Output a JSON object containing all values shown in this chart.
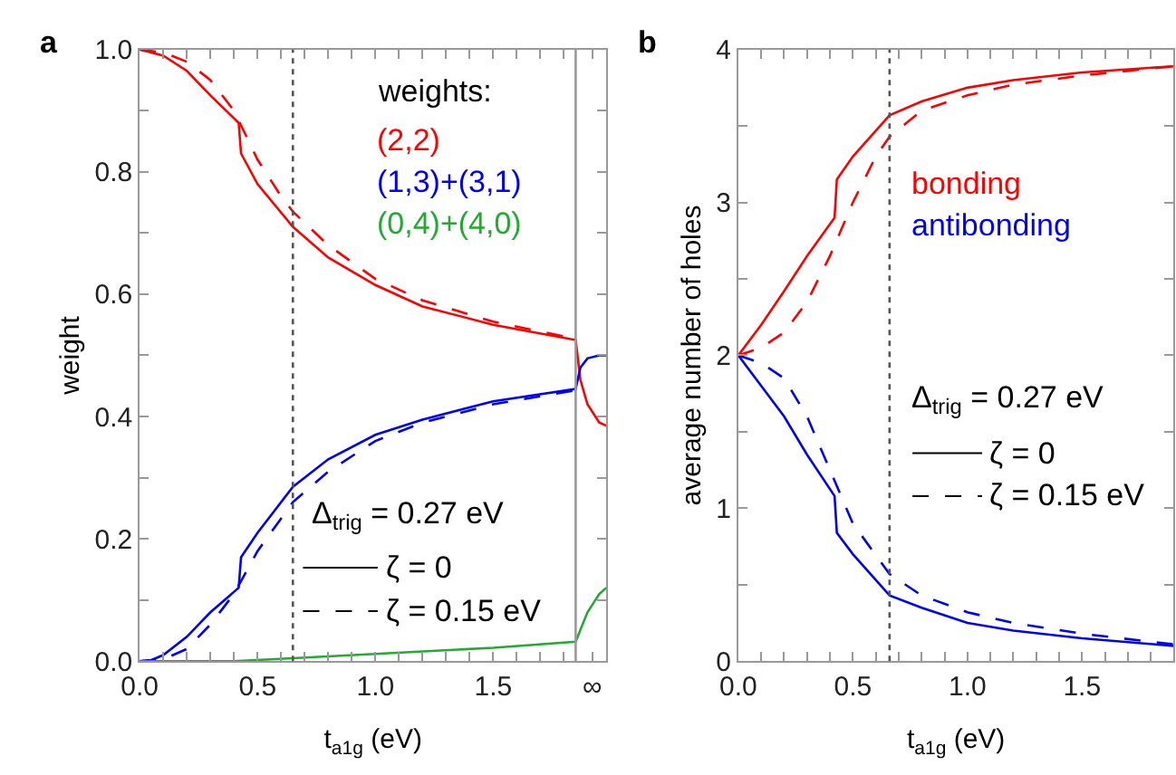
{
  "chart_data": [
    {
      "type": "line",
      "title": "a",
      "xlabel": "t$_{a1g}$ (eV)",
      "ylabel": "weight",
      "xlim": [
        0,
        1.98
      ],
      "ylim": [
        0,
        1.0
      ],
      "xticks": [
        {
          "value": 0,
          "label": "0.0"
        },
        {
          "value": 0.1,
          "label": null
        },
        {
          "value": 0.2,
          "label": null
        },
        {
          "value": 0.3,
          "label": null
        },
        {
          "value": 0.4,
          "label": null
        },
        {
          "value": 0.5,
          "label": "0.5"
        },
        {
          "value": 0.6,
          "label": null
        },
        {
          "value": 0.7,
          "label": null
        },
        {
          "value": 0.8,
          "label": null
        },
        {
          "value": 0.9,
          "label": null
        },
        {
          "value": 1.0,
          "label": "1.0"
        },
        {
          "value": 1.1,
          "label": null
        },
        {
          "value": 1.2,
          "label": null
        },
        {
          "value": 1.3,
          "label": null
        },
        {
          "value": 1.4,
          "label": null
        },
        {
          "value": 1.5,
          "label": "1.5"
        },
        {
          "value": 1.6,
          "label": null
        },
        {
          "value": 1.7,
          "label": null
        },
        {
          "value": 1.8,
          "label": null
        },
        {
          "value": 1.92,
          "label": "∞"
        }
      ],
      "yticks": [
        {
          "value": 0,
          "label": "0.0"
        },
        {
          "value": 0.1,
          "label": null
        },
        0.2,
        {
          "value": 0.3,
          "label": null
        },
        0.4,
        {
          "value": 0.5,
          "label": null
        },
        0.6,
        {
          "value": 0.7,
          "label": null
        },
        0.8,
        {
          "value": 0.9,
          "label": null
        },
        {
          "value": 1.0,
          "label": "1.0"
        }
      ],
      "legend": "top right",
      "series": [
        {
          "name": "(2,2)",
          "color": "#ff0000",
          "line_style": "solid",
          "x": [
            0,
            0.1,
            0.2,
            0.3,
            0.42,
            0.43,
            0.5,
            0.65,
            0.8,
            1.0,
            1.2,
            1.5,
            1.85,
            1.87,
            1.9,
            1.95,
            1.98
          ],
          "values": [
            1.0,
            0.99,
            0.965,
            0.925,
            0.88,
            0.83,
            0.78,
            0.71,
            0.66,
            0.615,
            0.58,
            0.55,
            0.525,
            0.46,
            0.42,
            0.39,
            0.385
          ]
        },
        {
          "color": "#ff0000",
          "line_style": "dashed",
          "x": [
            0,
            0.1,
            0.2,
            0.3,
            0.4,
            0.5,
            0.6,
            0.65,
            0.8,
            1.0,
            1.2,
            1.5,
            1.85
          ],
          "values": [
            1.0,
            0.995,
            0.98,
            0.95,
            0.9,
            0.82,
            0.76,
            0.735,
            0.68,
            0.625,
            0.59,
            0.555,
            0.527
          ]
        },
        {
          "name": "(1,3)+(3,1)",
          "color": "#0000ff",
          "line_style": "solid",
          "x": [
            0,
            0.05,
            0.1,
            0.2,
            0.3,
            0.42,
            0.43,
            0.5,
            0.65,
            0.8,
            1.0,
            1.2,
            1.5,
            1.85,
            1.87,
            1.9,
            1.95,
            1.98
          ],
          "values": [
            0,
            0.002,
            0.01,
            0.04,
            0.08,
            0.12,
            0.17,
            0.21,
            0.285,
            0.33,
            0.37,
            0.395,
            0.425,
            0.445,
            0.48,
            0.495,
            0.5,
            0.5
          ]
        },
        {
          "color": "#0000ff",
          "line_style": "dashed",
          "x": [
            0,
            0.1,
            0.2,
            0.3,
            0.4,
            0.5,
            0.65,
            0.8,
            1.0,
            1.2,
            1.5,
            1.85
          ],
          "values": [
            0,
            0.003,
            0.02,
            0.06,
            0.11,
            0.18,
            0.26,
            0.31,
            0.36,
            0.39,
            0.42,
            0.443
          ]
        },
        {
          "name": "(0,4)+(4,0)",
          "color": "#22aa33",
          "line_style": "solid",
          "x": [
            0,
            0.4,
            0.65,
            1.0,
            1.5,
            1.85,
            1.9,
            1.95,
            1.98
          ],
          "values": [
            0,
            0.0,
            0.005,
            0.012,
            0.022,
            0.032,
            0.08,
            0.11,
            0.12
          ]
        }
      ],
      "ref_lines": [
        {
          "axis": "x",
          "value": 0.65,
          "color": "#555555",
          "line_style": "dotted"
        },
        {
          "axis": "x",
          "value": 1.85,
          "color": "#999999",
          "line_style": "solid"
        }
      ],
      "annotations": [
        "weights:",
        "Δ$_{trig}$ = 0.27 eV",
        "ζ = 0",
        "ζ = 0.15 eV"
      ]
    },
    {
      "type": "line",
      "title": "b",
      "xlabel": "t$_{a1g}$ (eV)",
      "ylabel": "average number of holes",
      "xlim": [
        0,
        1.9
      ],
      "ylim": [
        0,
        4
      ],
      "xticks": [
        {
          "value": 0,
          "label": "0.0"
        },
        {
          "value": 0.1,
          "label": null
        },
        {
          "value": 0.2,
          "label": null
        },
        {
          "value": 0.3,
          "label": null
        },
        {
          "value": 0.4,
          "label": null
        },
        {
          "value": 0.5,
          "label": "0.5"
        },
        {
          "value": 0.6,
          "label": null
        },
        {
          "value": 0.7,
          "label": null
        },
        {
          "value": 0.8,
          "label": null
        },
        {
          "value": 0.9,
          "label": null
        },
        {
          "value": 1.0,
          "label": "1.0"
        },
        {
          "value": 1.1,
          "label": null
        },
        {
          "value": 1.2,
          "label": null
        },
        {
          "value": 1.3,
          "label": null
        },
        {
          "value": 1.4,
          "label": null
        },
        {
          "value": 1.5,
          "label": "1.5"
        },
        {
          "value": 1.6,
          "label": null
        },
        {
          "value": 1.7,
          "label": null
        },
        {
          "value": 1.8,
          "label": null
        }
      ],
      "yticks": [
        0,
        {
          "value": 0.5,
          "label": null
        },
        1,
        {
          "value": 1.5,
          "label": null
        },
        2,
        {
          "value": 2.5,
          "label": null
        },
        3,
        {
          "value": 3.5,
          "label": null
        },
        4
      ],
      "legend": "right",
      "series": [
        {
          "name": "bonding",
          "color": "#ff0000",
          "line_style": "solid",
          "x": [
            0,
            0.1,
            0.2,
            0.3,
            0.42,
            0.43,
            0.5,
            0.66,
            0.8,
            1.0,
            1.2,
            1.5,
            1.9
          ],
          "values": [
            2,
            2.2,
            2.42,
            2.65,
            2.9,
            3.15,
            3.3,
            3.57,
            3.66,
            3.75,
            3.8,
            3.85,
            3.89
          ]
        },
        {
          "color": "#ff0000",
          "line_style": "dashed",
          "x": [
            0,
            0.1,
            0.2,
            0.3,
            0.4,
            0.5,
            0.6,
            0.66,
            0.8,
            1.0,
            1.2,
            1.5,
            1.9
          ],
          "values": [
            2,
            2.05,
            2.15,
            2.35,
            2.65,
            3.0,
            3.3,
            3.43,
            3.6,
            3.7,
            3.77,
            3.83,
            3.89
          ]
        },
        {
          "name": "antibonding",
          "color": "#0000ff",
          "line_style": "solid",
          "x": [
            0,
            0.1,
            0.2,
            0.3,
            0.42,
            0.43,
            0.5,
            0.66,
            0.8,
            1.0,
            1.2,
            1.5,
            1.9
          ],
          "values": [
            2,
            1.8,
            1.6,
            1.35,
            1.08,
            0.84,
            0.7,
            0.43,
            0.35,
            0.25,
            0.2,
            0.15,
            0.1
          ]
        },
        {
          "color": "#0000ff",
          "line_style": "dashed",
          "x": [
            0,
            0.1,
            0.2,
            0.3,
            0.4,
            0.5,
            0.66,
            0.8,
            1.0,
            1.2,
            1.5,
            1.9
          ],
          "values": [
            2,
            1.95,
            1.85,
            1.6,
            1.25,
            0.9,
            0.57,
            0.43,
            0.32,
            0.25,
            0.18,
            0.11
          ]
        }
      ],
      "ref_lines": [
        {
          "axis": "x",
          "value": 0.66,
          "color": "#555555",
          "line_style": "dotted"
        }
      ],
      "annotations": [
        "Δ$_{trig}$ = 0.27 eV",
        "ζ = 0",
        "ζ = 0.15 eV"
      ]
    }
  ]
}
